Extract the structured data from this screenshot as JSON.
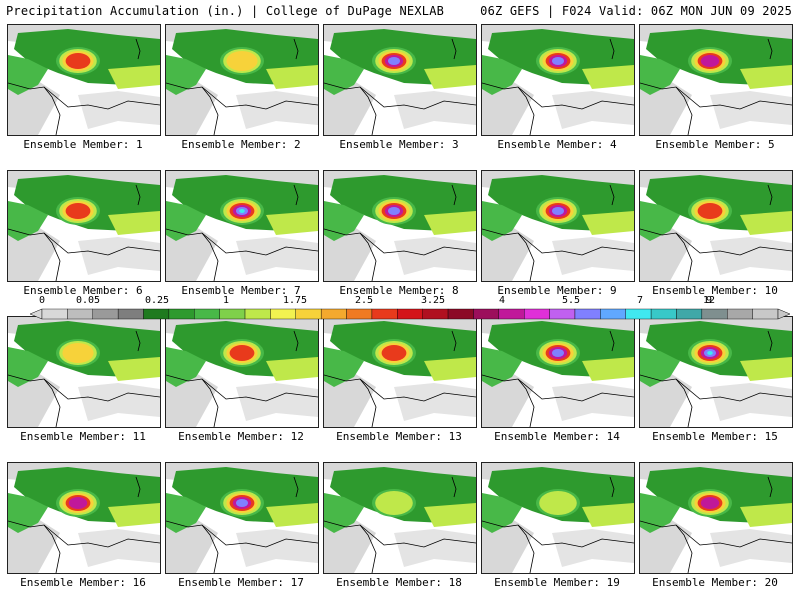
{
  "header": {
    "title_left": "Precipitation Accumulation (in.) | College of DuPage NEXLAB",
    "title_right": "06Z GEFS | F024 Valid: 06Z MON JUN 09 2025"
  },
  "colors": {
    "bins": [
      "#d8d8d8",
      "#bdbdbd",
      "#9a9a9a",
      "#7e7e7e",
      "#1f7a1f",
      "#2e9a2e",
      "#48b848",
      "#7fd04a",
      "#bfe84a",
      "#f2f250",
      "#f7d23a",
      "#f4a92e",
      "#f07a22",
      "#e83a1c",
      "#d4141a",
      "#b01020",
      "#8c0a26",
      "#9c0e5c",
      "#c0189a",
      "#e030d8",
      "#c060f0",
      "#8080ff",
      "#60a8ff",
      "#40e8f0",
      "#38c8c8",
      "#40a8a8",
      "#7f8f8f",
      "#a8a8a8",
      "#c8c8c8"
    ]
  },
  "colorbar": {
    "ticks": [
      "0",
      "0.05",
      "0.25",
      "1",
      "1.75",
      "2.5",
      "3.25",
      "4",
      "5.5",
      "7",
      "9",
      "12"
    ]
  },
  "panels": [
    {
      "label": "Ensemble Member: 1",
      "peak": 3
    },
    {
      "label": "Ensemble Member: 2",
      "peak": 2
    },
    {
      "label": "Ensemble Member: 3",
      "peak": 5
    },
    {
      "label": "Ensemble Member: 4",
      "peak": 5
    },
    {
      "label": "Ensemble Member: 5",
      "peak": 4
    },
    {
      "label": "Ensemble Member: 6",
      "peak": 3
    },
    {
      "label": "Ensemble Member: 7",
      "peak": 6
    },
    {
      "label": "Ensemble Member: 8",
      "peak": 5
    },
    {
      "label": "Ensemble Member: 9",
      "peak": 5
    },
    {
      "label": "Ensemble Member: 10",
      "peak": 3
    },
    {
      "label": "Ensemble Member: 11",
      "peak": 2
    },
    {
      "label": "Ensemble Member: 12",
      "peak": 3
    },
    {
      "label": "Ensemble Member: 13",
      "peak": 3
    },
    {
      "label": "Ensemble Member: 14",
      "peak": 5
    },
    {
      "label": "Ensemble Member: 15",
      "peak": 6
    },
    {
      "label": "Ensemble Member: 16",
      "peak": 4
    },
    {
      "label": "Ensemble Member: 17",
      "peak": 5
    },
    {
      "label": "Ensemble Member: 18",
      "peak": 1
    },
    {
      "label": "Ensemble Member: 19",
      "peak": 1
    },
    {
      "label": "Ensemble Member: 20",
      "peak": 4
    }
  ]
}
